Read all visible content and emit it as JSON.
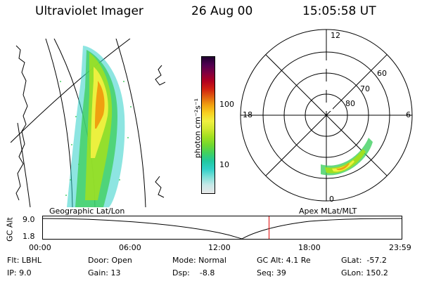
{
  "header": {
    "instrument": "Ultraviolet Imager",
    "date": "26 Aug 00",
    "time": "15:05:58 UT"
  },
  "colorbar": {
    "unit_label": "photon cm⁻²s⁻¹",
    "ticks": [
      "100",
      "10"
    ],
    "colors": [
      "#e8e8e8",
      "#c8e8e8",
      "#80e0d8",
      "#30d0c8",
      "#20c8a0",
      "#40d060",
      "#70d830",
      "#a0e020",
      "#d0e830",
      "#f0f040",
      "#f8d020",
      "#f0a010",
      "#e06010",
      "#d02010",
      "#b00020",
      "#800040",
      "#500050",
      "#200030"
    ]
  },
  "left_panel": {
    "caption": "Geographic Lat/Lon"
  },
  "polar_panel": {
    "caption": "Apex MLat/MLT",
    "mlt_labels": {
      "top": "12",
      "left": "18",
      "right": "6",
      "bottom": "0"
    },
    "lat_labels": [
      "60",
      "70",
      "80"
    ]
  },
  "altitude_strip": {
    "axis_label": "GC Alt",
    "y_ticks": [
      "9.0",
      "1.8"
    ],
    "x_ticks": [
      "00:00",
      "06:00",
      "12:00",
      "18:00",
      "23:59"
    ],
    "current_time_fraction": 0.63
  },
  "footer": {
    "filter": "Flt: LBHL",
    "ip": "IP: 9.0",
    "door": "Door: Open",
    "gain": "Gain: 13",
    "mode": "Mode: Normal",
    "dsp": "Dsp:    -8.8",
    "gc_alt": "GC Alt: 4.1 Re",
    "seq": "Seq: 39",
    "glat": "GLat:  -57.2",
    "glon": "GLon: 150.2"
  }
}
